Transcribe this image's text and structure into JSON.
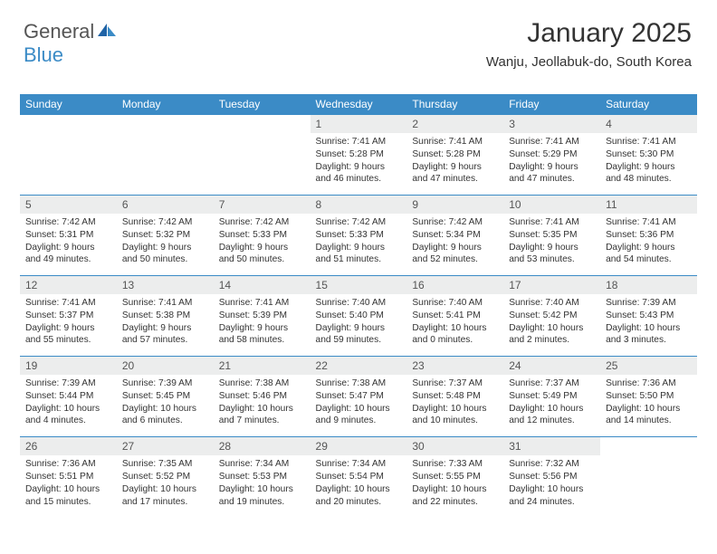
{
  "logo": {
    "text1": "General",
    "text2": "Blue"
  },
  "title": "January 2025",
  "location": "Wanju, Jeollabuk-do, South Korea",
  "colors": {
    "header_bg": "#3b8bc6",
    "header_text": "#ffffff",
    "daynum_bg": "#eceded",
    "border": "#3b8bc6",
    "text": "#333333",
    "logo_gray": "#555555",
    "logo_blue": "#3b8bc6",
    "background": "#ffffff"
  },
  "weekdays": [
    "Sunday",
    "Monday",
    "Tuesday",
    "Wednesday",
    "Thursday",
    "Friday",
    "Saturday"
  ],
  "grid": {
    "rows": 5,
    "cols": 7,
    "first_day_col": 3,
    "days_in_month": 31
  },
  "days": [
    {
      "n": 1,
      "sunrise": "7:41 AM",
      "sunset": "5:28 PM",
      "daylight": "9 hours and 46 minutes."
    },
    {
      "n": 2,
      "sunrise": "7:41 AM",
      "sunset": "5:28 PM",
      "daylight": "9 hours and 47 minutes."
    },
    {
      "n": 3,
      "sunrise": "7:41 AM",
      "sunset": "5:29 PM",
      "daylight": "9 hours and 47 minutes."
    },
    {
      "n": 4,
      "sunrise": "7:41 AM",
      "sunset": "5:30 PM",
      "daylight": "9 hours and 48 minutes."
    },
    {
      "n": 5,
      "sunrise": "7:42 AM",
      "sunset": "5:31 PM",
      "daylight": "9 hours and 49 minutes."
    },
    {
      "n": 6,
      "sunrise": "7:42 AM",
      "sunset": "5:32 PM",
      "daylight": "9 hours and 50 minutes."
    },
    {
      "n": 7,
      "sunrise": "7:42 AM",
      "sunset": "5:33 PM",
      "daylight": "9 hours and 50 minutes."
    },
    {
      "n": 8,
      "sunrise": "7:42 AM",
      "sunset": "5:33 PM",
      "daylight": "9 hours and 51 minutes."
    },
    {
      "n": 9,
      "sunrise": "7:42 AM",
      "sunset": "5:34 PM",
      "daylight": "9 hours and 52 minutes."
    },
    {
      "n": 10,
      "sunrise": "7:41 AM",
      "sunset": "5:35 PM",
      "daylight": "9 hours and 53 minutes."
    },
    {
      "n": 11,
      "sunrise": "7:41 AM",
      "sunset": "5:36 PM",
      "daylight": "9 hours and 54 minutes."
    },
    {
      "n": 12,
      "sunrise": "7:41 AM",
      "sunset": "5:37 PM",
      "daylight": "9 hours and 55 minutes."
    },
    {
      "n": 13,
      "sunrise": "7:41 AM",
      "sunset": "5:38 PM",
      "daylight": "9 hours and 57 minutes."
    },
    {
      "n": 14,
      "sunrise": "7:41 AM",
      "sunset": "5:39 PM",
      "daylight": "9 hours and 58 minutes."
    },
    {
      "n": 15,
      "sunrise": "7:40 AM",
      "sunset": "5:40 PM",
      "daylight": "9 hours and 59 minutes."
    },
    {
      "n": 16,
      "sunrise": "7:40 AM",
      "sunset": "5:41 PM",
      "daylight": "10 hours and 0 minutes."
    },
    {
      "n": 17,
      "sunrise": "7:40 AM",
      "sunset": "5:42 PM",
      "daylight": "10 hours and 2 minutes."
    },
    {
      "n": 18,
      "sunrise": "7:39 AM",
      "sunset": "5:43 PM",
      "daylight": "10 hours and 3 minutes."
    },
    {
      "n": 19,
      "sunrise": "7:39 AM",
      "sunset": "5:44 PM",
      "daylight": "10 hours and 4 minutes."
    },
    {
      "n": 20,
      "sunrise": "7:39 AM",
      "sunset": "5:45 PM",
      "daylight": "10 hours and 6 minutes."
    },
    {
      "n": 21,
      "sunrise": "7:38 AM",
      "sunset": "5:46 PM",
      "daylight": "10 hours and 7 minutes."
    },
    {
      "n": 22,
      "sunrise": "7:38 AM",
      "sunset": "5:47 PM",
      "daylight": "10 hours and 9 minutes."
    },
    {
      "n": 23,
      "sunrise": "7:37 AM",
      "sunset": "5:48 PM",
      "daylight": "10 hours and 10 minutes."
    },
    {
      "n": 24,
      "sunrise": "7:37 AM",
      "sunset": "5:49 PM",
      "daylight": "10 hours and 12 minutes."
    },
    {
      "n": 25,
      "sunrise": "7:36 AM",
      "sunset": "5:50 PM",
      "daylight": "10 hours and 14 minutes."
    },
    {
      "n": 26,
      "sunrise": "7:36 AM",
      "sunset": "5:51 PM",
      "daylight": "10 hours and 15 minutes."
    },
    {
      "n": 27,
      "sunrise": "7:35 AM",
      "sunset": "5:52 PM",
      "daylight": "10 hours and 17 minutes."
    },
    {
      "n": 28,
      "sunrise": "7:34 AM",
      "sunset": "5:53 PM",
      "daylight": "10 hours and 19 minutes."
    },
    {
      "n": 29,
      "sunrise": "7:34 AM",
      "sunset": "5:54 PM",
      "daylight": "10 hours and 20 minutes."
    },
    {
      "n": 30,
      "sunrise": "7:33 AM",
      "sunset": "5:55 PM",
      "daylight": "10 hours and 22 minutes."
    },
    {
      "n": 31,
      "sunrise": "7:32 AM",
      "sunset": "5:56 PM",
      "daylight": "10 hours and 24 minutes."
    }
  ],
  "labels": {
    "sunrise": "Sunrise:",
    "sunset": "Sunset:",
    "daylight": "Daylight:"
  }
}
